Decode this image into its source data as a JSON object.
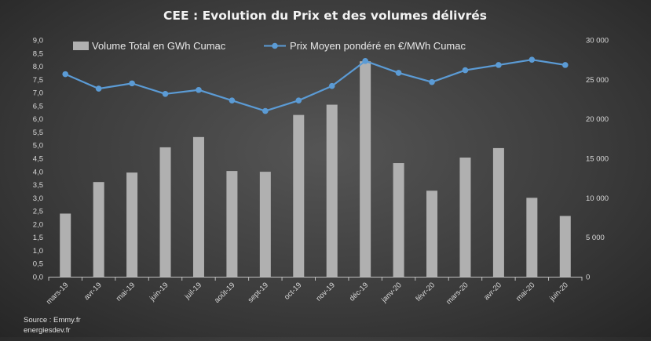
{
  "chart_data": {
    "type": "bar",
    "title": "CEE : Evolution du Prix et des volumes délivrés",
    "categories": [
      "mars-19",
      "avr-19",
      "mai-19",
      "juin-19",
      "juil-19",
      "août-19",
      "sept-19",
      "oct-19",
      "nov-19",
      "déc-19",
      "janv-20",
      "févr-20",
      "mars-20",
      "avr-20",
      "mai-20",
      "juin-20"
    ],
    "series": [
      {
        "name": "Volume Total en GWh Cumac",
        "type": "bar",
        "axis": "right",
        "color": "#b0b0b0",
        "values": [
          8000,
          12000,
          13200,
          16400,
          17700,
          13400,
          13300,
          20500,
          21800,
          27300,
          14400,
          10900,
          15100,
          16300,
          10000,
          7700
        ]
      },
      {
        "name": "Prix Moyen pondéré en €/MWh Cumac",
        "type": "line",
        "axis": "left",
        "color": "#5b9bd5",
        "values": [
          7.7,
          7.15,
          7.35,
          6.95,
          7.1,
          6.7,
          6.3,
          6.7,
          7.25,
          8.2,
          7.75,
          7.4,
          7.85,
          8.05,
          8.25,
          8.05
        ]
      }
    ],
    "y_left": {
      "min": 0,
      "max": 9,
      "step": 0.5,
      "ticks": [
        "0,0",
        "0,5",
        "1,0",
        "1,5",
        "2,0",
        "2,5",
        "3,0",
        "3,5",
        "4,0",
        "4,5",
        "5,0",
        "5,5",
        "6,0",
        "6,5",
        "7,0",
        "7,5",
        "8,0",
        "8,5",
        "9,0"
      ]
    },
    "y_right": {
      "min": 0,
      "max": 30000,
      "step": 5000,
      "ticks": [
        "0",
        "5 000",
        "10 000",
        "15 000",
        "20 000",
        "25 000",
        "30 000"
      ]
    },
    "legend_position": "top-center",
    "grid": false
  },
  "source": {
    "line1": "Source : Emmy.fr",
    "line2": "energiesdev.fr"
  }
}
